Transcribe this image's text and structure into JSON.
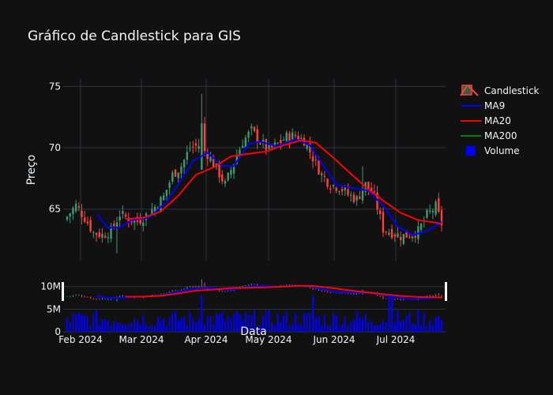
{
  "chart_data": {
    "type": "candlestick",
    "title": "Gráfico de Candlestick para GIS",
    "xlabel": "Data",
    "ylabel": "Preço",
    "x_ticks": [
      "Feb 2024",
      "Mar 2024",
      "Apr 2024",
      "May 2024",
      "Jun 2024",
      "Jul 2024"
    ],
    "y_ticks": [
      "65",
      "70",
      "75"
    ],
    "volume_ticks": [
      "0",
      "5M",
      "10M"
    ],
    "ylim": [
      60.8,
      75.6
    ],
    "grid": true,
    "legend_position": "right",
    "legend": [
      {
        "name": "Candlestick",
        "kind": "candle"
      },
      {
        "name": "MA9",
        "kind": "line",
        "color": "#0000ff"
      },
      {
        "name": "MA20",
        "kind": "line",
        "color": "#ff0000"
      },
      {
        "name": "MA200",
        "kind": "line",
        "color": "#008000"
      },
      {
        "name": "Volume",
        "kind": "square",
        "color": "#0000ff"
      }
    ],
    "colors": {
      "increasing": "#3d9970",
      "decreasing": "#ff4136",
      "ma9": "#0000ff",
      "ma20": "#ff0000",
      "ma200": "#008000",
      "volume": "#0000ff",
      "background": "#111111",
      "grid": "#283442"
    },
    "close_trajectory": [
      [
        0,
        64.4
      ],
      [
        3,
        65.3
      ],
      [
        6,
        64.3
      ],
      [
        9,
        63.1
      ],
      [
        12,
        62.9
      ],
      [
        15,
        63.2
      ],
      [
        18,
        64.6
      ],
      [
        21,
        64.2
      ],
      [
        24,
        64.0
      ],
      [
        27,
        64.5
      ],
      [
        30,
        65.2
      ],
      [
        33,
        66.0
      ],
      [
        36,
        67.8
      ],
      [
        39,
        68.5
      ],
      [
        42,
        70.0
      ],
      [
        45,
        70.2
      ],
      [
        48,
        69.5
      ],
      [
        51,
        68.3
      ],
      [
        54,
        67.0
      ],
      [
        57,
        68.8
      ],
      [
        60,
        70.5
      ],
      [
        63,
        71.4
      ],
      [
        66,
        70.5
      ],
      [
        69,
        69.8
      ],
      [
        72,
        70.3
      ],
      [
        75,
        70.9
      ],
      [
        78,
        71.0
      ],
      [
        81,
        70.6
      ],
      [
        84,
        69.2
      ],
      [
        87,
        67.8
      ],
      [
        90,
        67.0
      ],
      [
        93,
        66.8
      ],
      [
        96,
        66.2
      ],
      [
        99,
        65.8
      ],
      [
        102,
        67.0
      ],
      [
        105,
        66.0
      ],
      [
        108,
        63.4
      ],
      [
        111,
        63.1
      ],
      [
        114,
        62.8
      ],
      [
        117,
        62.9
      ],
      [
        120,
        63.2
      ],
      [
        123,
        64.5
      ],
      [
        126,
        65.2
      ],
      [
        128,
        63.8
      ]
    ],
    "ma9_points": [
      [
        10,
        64.6
      ],
      [
        14,
        63.5
      ],
      [
        18,
        63.5
      ],
      [
        22,
        64.1
      ],
      [
        28,
        64.3
      ],
      [
        34,
        65.6
      ],
      [
        39,
        67.4
      ],
      [
        43,
        68.9
      ],
      [
        48,
        69.6
      ],
      [
        53,
        68.5
      ],
      [
        57,
        68.5
      ],
      [
        62,
        70.3
      ],
      [
        66,
        70.5
      ],
      [
        72,
        70.1
      ],
      [
        78,
        70.7
      ],
      [
        83,
        70.2
      ],
      [
        88,
        68.4
      ],
      [
        92,
        67.0
      ],
      [
        96,
        66.8
      ],
      [
        103,
        66.5
      ],
      [
        108,
        65.3
      ],
      [
        113,
        63.6
      ],
      [
        118,
        62.9
      ],
      [
        123,
        63.2
      ],
      [
        128,
        64.0
      ]
    ],
    "ma20_points": [
      [
        20,
        64.2
      ],
      [
        26,
        64.3
      ],
      [
        32,
        64.8
      ],
      [
        38,
        66.1
      ],
      [
        44,
        67.8
      ],
      [
        50,
        68.4
      ],
      [
        56,
        69.3
      ],
      [
        62,
        69.5
      ],
      [
        68,
        69.7
      ],
      [
        74,
        70.2
      ],
      [
        80,
        70.6
      ],
      [
        85,
        70.4
      ],
      [
        90,
        69.4
      ],
      [
        96,
        68.1
      ],
      [
        102,
        66.8
      ],
      [
        108,
        65.7
      ],
      [
        114,
        64.7
      ],
      [
        120,
        64.1
      ],
      [
        126,
        63.9
      ],
      [
        128,
        63.8
      ]
    ],
    "volume_range": [
      1000000,
      8000000
    ]
  }
}
